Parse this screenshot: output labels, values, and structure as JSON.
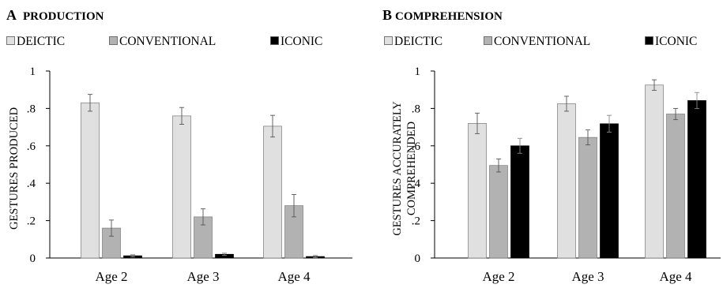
{
  "chart_data": [
    {
      "type": "bar",
      "title_letter": "A",
      "title": "PRODUCTION",
      "ylabel": [
        "GESTURES PRODUCED"
      ],
      "categories": [
        "Age 2",
        "Age 3",
        "Age 4"
      ],
      "ylim": [
        0,
        1
      ],
      "yticks": [
        "0",
        ".2",
        ".4",
        ".6",
        ".8",
        "1"
      ],
      "legend_position": "top",
      "series": [
        {
          "name": "DEICTIC",
          "color": "#e0e0e0",
          "values": [
            0.83,
            0.76,
            0.705
          ],
          "errors": [
            0.045,
            0.045,
            0.058
          ]
        },
        {
          "name": "CONVENTIONAL",
          "color": "#b2b2b2",
          "values": [
            0.16,
            0.22,
            0.28
          ],
          "errors": [
            0.043,
            0.043,
            0.06
          ]
        },
        {
          "name": "ICONIC",
          "color": "#000000",
          "values": [
            0.012,
            0.02,
            0.008
          ],
          "errors": [
            0.006,
            0.006,
            0.006
          ]
        }
      ]
    },
    {
      "type": "bar",
      "title_letter": "B",
      "title": "COMPREHENSION",
      "ylabel": [
        "GESTURES ACCURATELY",
        "COMPREHENDED"
      ],
      "categories": [
        "Age 2",
        "Age 3",
        "Age 4"
      ],
      "ylim": [
        0,
        1
      ],
      "yticks": [
        "0",
        ".2",
        ".4",
        ".6",
        ".8",
        "1"
      ],
      "legend_position": "top",
      "series": [
        {
          "name": "DEICTIC",
          "color": "#e0e0e0",
          "values": [
            0.72,
            0.825,
            0.925
          ],
          "errors": [
            0.055,
            0.04,
            0.028
          ]
        },
        {
          "name": "CONVENTIONAL",
          "color": "#b2b2b2",
          "values": [
            0.495,
            0.645,
            0.77
          ],
          "errors": [
            0.035,
            0.04,
            0.03
          ]
        },
        {
          "name": "ICONIC",
          "color": "#000000",
          "values": [
            0.6,
            0.718,
            0.842
          ],
          "errors": [
            0.04,
            0.045,
            0.043
          ]
        }
      ]
    }
  ]
}
